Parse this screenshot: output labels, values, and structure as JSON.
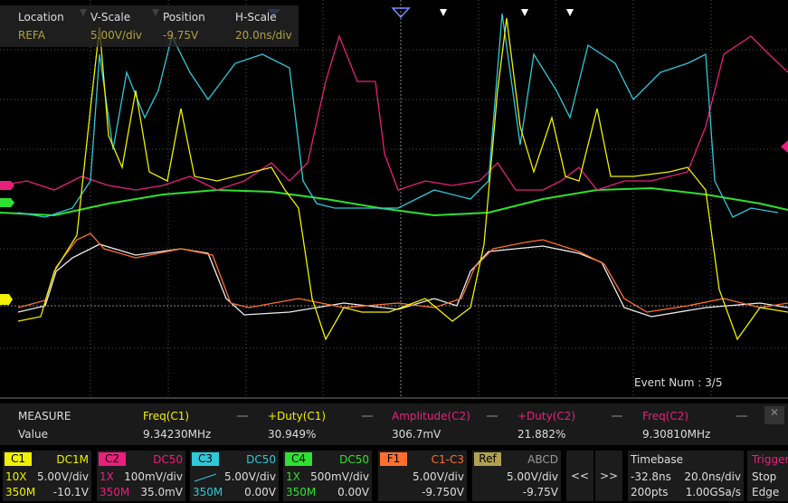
{
  "info": {
    "location": {
      "label": "Location",
      "value": "REFA"
    },
    "v_scale": {
      "label": "V-Scale",
      "value": "5.00V/div"
    },
    "position": {
      "label": "Position",
      "value": "-9.75V"
    },
    "h_scale": {
      "label": "H-Scale",
      "value": "20.0ns/div"
    }
  },
  "event_num": "Event Num : 3/5",
  "measure": {
    "title": "MEASURE",
    "row_label": "Value",
    "items": [
      {
        "name": "Freq(C1)",
        "value": "9.34230MHz"
      },
      {
        "name": "+Duty(C1)",
        "value": "30.949%"
      },
      {
        "name": "Amplitude(C2)",
        "value": "306.7mV"
      },
      {
        "name": "+Duty(C2)",
        "value": "21.882%"
      },
      {
        "name": "Freq(C2)",
        "value": "9.30810MHz"
      }
    ]
  },
  "channels": [
    {
      "name": "C1",
      "coupling": "DC1M",
      "probe": "10X",
      "scale": "5.00V/div",
      "bandwidth": "350M",
      "offset": "-10.1V"
    },
    {
      "name": "C2",
      "coupling": "DC50",
      "probe": "1X",
      "scale": "100mV/div",
      "bandwidth": "350M",
      "offset": "35.0mV"
    },
    {
      "name": "C3",
      "coupling": "DC50",
      "scale": "5.00V/div",
      "bandwidth": "350M",
      "offset": "0.00V"
    },
    {
      "name": "C4",
      "coupling": "DC50",
      "probe": "1X",
      "scale": "500mV/div",
      "bandwidth": "350M",
      "offset": "0.00V"
    }
  ],
  "math": {
    "name": "F1",
    "source": "C1-C3",
    "scale": "5.00V/div",
    "offset": "-9.750V"
  },
  "ref": {
    "name": "Ref",
    "slots": "ABCD",
    "scale": "5.00V/div",
    "offset": "-9.75V"
  },
  "nav": [
    "<<",
    ">>"
  ],
  "timebase": {
    "title": "Timebase",
    "delay": "-32.8ns",
    "scale": "20.0ns/div",
    "points": "200pts",
    "sample_rate": "1.00GSa/s"
  },
  "trigger": {
    "title": "Trigger",
    "state": "Stop",
    "type": "Edge"
  }
}
